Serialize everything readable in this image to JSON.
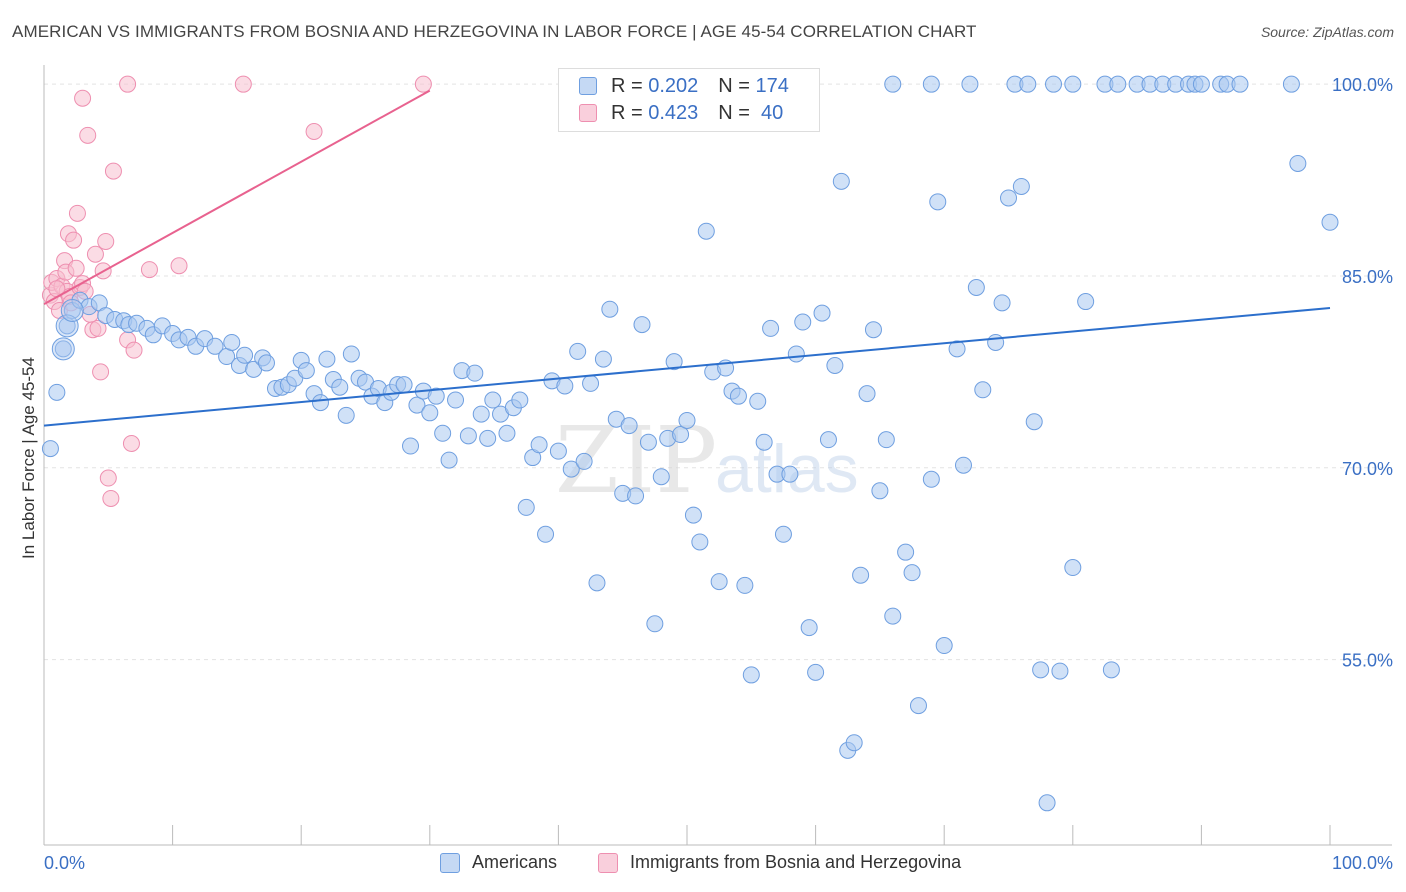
{
  "header": {
    "title": "AMERICAN VS IMMIGRANTS FROM BOSNIA AND HERZEGOVINA IN LABOR FORCE | AGE 45-54 CORRELATION CHART",
    "source": "Source: ZipAtlas.com"
  },
  "watermark": {
    "zip": "ZIP",
    "atlas": "atlas"
  },
  "legend": {
    "rows": [
      {
        "r_label": "R =",
        "r_value": "0.202",
        "n_label": "N =",
        "n_value": "174"
      },
      {
        "r_label": "R =",
        "r_value": "0.423",
        "n_label": "N =",
        "n_value": " 40"
      }
    ]
  },
  "colors": {
    "americans_fill": "#aac8f0",
    "americans_stroke": "#6f9fe0",
    "americans_line": "#2c6fcc",
    "bosnia_fill": "#f7bfd0",
    "bosnia_stroke": "#ee8fb0",
    "bosnia_line": "#e8628f",
    "tick_label": "#3a6fc4"
  },
  "chart_data": {
    "type": "scatter",
    "title": "AMERICAN VS IMMIGRANTS FROM BOSNIA AND HERZEGOVINA IN LABOR FORCE | AGE 45-54 CORRELATION CHART",
    "xlabel": "",
    "ylabel": "In Labor Force | Age 45-54",
    "xlim": [
      0,
      100
    ],
    "ylim": [
      40.5,
      101.5
    ],
    "x_tick_labels": [
      "0.0%",
      "100.0%"
    ],
    "y_ticks": [
      55,
      70,
      85,
      100
    ],
    "y_tick_labels": [
      "55.0%",
      "70.0%",
      "85.0%",
      "100.0%"
    ],
    "grid": true,
    "legend_position": "top-center",
    "series": [
      {
        "name": "Americans",
        "R": 0.202,
        "N": 174,
        "trend": [
          [
            0,
            73.3
          ],
          [
            100,
            82.5
          ]
        ],
        "points": [
          [
            0.5,
            71.5
          ],
          [
            1.0,
            75.9
          ],
          [
            1.5,
            79.3
          ],
          [
            1.8,
            81.1
          ],
          [
            2.2,
            82.3
          ],
          [
            2.8,
            83.1
          ],
          [
            3.5,
            82.6
          ],
          [
            4.3,
            82.9
          ],
          [
            4.8,
            81.9
          ],
          [
            5.5,
            81.6
          ],
          [
            6.2,
            81.5
          ],
          [
            6.6,
            81.2
          ],
          [
            7.2,
            81.3
          ],
          [
            8.0,
            80.9
          ],
          [
            8.5,
            80.4
          ],
          [
            9.2,
            81.1
          ],
          [
            10.0,
            80.5
          ],
          [
            10.5,
            80.0
          ],
          [
            11.2,
            80.2
          ],
          [
            11.8,
            79.5
          ],
          [
            12.5,
            80.1
          ],
          [
            13.3,
            79.5
          ],
          [
            14.2,
            78.7
          ],
          [
            14.6,
            79.8
          ],
          [
            15.2,
            78.0
          ],
          [
            15.6,
            78.8
          ],
          [
            16.3,
            77.7
          ],
          [
            17.0,
            78.6
          ],
          [
            17.3,
            78.2
          ],
          [
            18.0,
            76.2
          ],
          [
            18.5,
            76.3
          ],
          [
            19.0,
            76.5
          ],
          [
            19.5,
            77.0
          ],
          [
            20.0,
            78.4
          ],
          [
            20.4,
            77.6
          ],
          [
            21.0,
            75.8
          ],
          [
            21.5,
            75.1
          ],
          [
            22.0,
            78.5
          ],
          [
            22.5,
            76.9
          ],
          [
            23.0,
            76.3
          ],
          [
            23.5,
            74.1
          ],
          [
            23.9,
            78.9
          ],
          [
            24.5,
            77.0
          ],
          [
            25.0,
            76.7
          ],
          [
            25.5,
            75.6
          ],
          [
            26.0,
            76.2
          ],
          [
            26.5,
            75.1
          ],
          [
            27.0,
            75.9
          ],
          [
            27.5,
            76.5
          ],
          [
            28.0,
            76.5
          ],
          [
            28.5,
            71.7
          ],
          [
            29.0,
            74.9
          ],
          [
            29.5,
            76.0
          ],
          [
            30.0,
            74.3
          ],
          [
            30.5,
            75.6
          ],
          [
            31.0,
            72.7
          ],
          [
            31.5,
            70.6
          ],
          [
            32.0,
            75.3
          ],
          [
            32.5,
            77.6
          ],
          [
            33.0,
            72.5
          ],
          [
            33.5,
            77.4
          ],
          [
            34.0,
            74.2
          ],
          [
            34.5,
            72.3
          ],
          [
            34.9,
            75.3
          ],
          [
            35.5,
            74.2
          ],
          [
            36.0,
            72.7
          ],
          [
            36.5,
            74.7
          ],
          [
            37.0,
            75.3
          ],
          [
            37.5,
            66.9
          ],
          [
            38.0,
            70.8
          ],
          [
            38.5,
            71.8
          ],
          [
            39.0,
            64.8
          ],
          [
            39.5,
            76.8
          ],
          [
            40.0,
            71.3
          ],
          [
            40.5,
            76.4
          ],
          [
            41.0,
            69.9
          ],
          [
            41.5,
            79.1
          ],
          [
            42.0,
            70.5
          ],
          [
            42.5,
            76.6
          ],
          [
            43.0,
            61.0
          ],
          [
            43.5,
            78.5
          ],
          [
            44.0,
            82.4
          ],
          [
            44.5,
            73.8
          ],
          [
            45.0,
            68.0
          ],
          [
            45.5,
            73.3
          ],
          [
            46.0,
            67.8
          ],
          [
            46.5,
            81.2
          ],
          [
            47.0,
            72.0
          ],
          [
            47.5,
            57.8
          ],
          [
            48.0,
            69.3
          ],
          [
            48.5,
            72.3
          ],
          [
            49.0,
            78.3
          ],
          [
            49.5,
            72.6
          ],
          [
            50.0,
            73.7
          ],
          [
            50.5,
            66.3
          ],
          [
            51.0,
            64.2
          ],
          [
            51.5,
            88.5
          ],
          [
            52.0,
            77.5
          ],
          [
            52.5,
            61.1
          ],
          [
            53.0,
            77.8
          ],
          [
            53.5,
            76.0
          ],
          [
            54.0,
            75.6
          ],
          [
            54.5,
            60.8
          ],
          [
            55.0,
            53.8
          ],
          [
            55.5,
            75.2
          ],
          [
            56.0,
            72.0
          ],
          [
            56.5,
            80.9
          ],
          [
            57.0,
            69.5
          ],
          [
            57.5,
            64.8
          ],
          [
            58.0,
            69.5
          ],
          [
            58.5,
            78.9
          ],
          [
            59.0,
            81.4
          ],
          [
            59.5,
            57.5
          ],
          [
            60.0,
            54.0
          ],
          [
            60.5,
            82.1
          ],
          [
            61.0,
            72.2
          ],
          [
            61.5,
            78.0
          ],
          [
            62.0,
            92.4
          ],
          [
            62.5,
            47.9
          ],
          [
            63.0,
            48.5
          ],
          [
            63.5,
            61.6
          ],
          [
            64.0,
            75.8
          ],
          [
            64.5,
            80.8
          ],
          [
            65.0,
            68.2
          ],
          [
            65.5,
            72.2
          ],
          [
            66.0,
            58.4
          ],
          [
            67.0,
            63.4
          ],
          [
            67.5,
            61.8
          ],
          [
            68.0,
            51.4
          ],
          [
            69.0,
            69.1
          ],
          [
            69.5,
            90.8
          ],
          [
            70.0,
            56.1
          ],
          [
            71.0,
            79.3
          ],
          [
            71.5,
            70.2
          ],
          [
            72.5,
            84.1
          ],
          [
            73.0,
            76.1
          ],
          [
            74.0,
            79.8
          ],
          [
            74.5,
            82.9
          ],
          [
            75.0,
            91.1
          ],
          [
            76.0,
            92.0
          ],
          [
            77.0,
            73.6
          ],
          [
            77.5,
            54.2
          ],
          [
            78.0,
            43.8
          ],
          [
            79.0,
            54.1
          ],
          [
            80.0,
            62.2
          ],
          [
            81.0,
            83.0
          ],
          [
            83.0,
            54.2
          ],
          [
            66.0,
            100.0
          ],
          [
            69.0,
            100.0
          ],
          [
            72.0,
            100.0
          ],
          [
            75.5,
            100.0
          ],
          [
            76.5,
            100.0
          ],
          [
            78.5,
            100.0
          ],
          [
            80.0,
            100.0
          ],
          [
            82.5,
            100.0
          ],
          [
            83.5,
            100.0
          ],
          [
            85.0,
            100.0
          ],
          [
            86.0,
            100.0
          ],
          [
            87.0,
            100.0
          ],
          [
            88.0,
            100.0
          ],
          [
            89.0,
            100.0
          ],
          [
            89.5,
            100.0
          ],
          [
            90.0,
            100.0
          ],
          [
            91.5,
            100.0
          ],
          [
            92.0,
            100.0
          ],
          [
            93.0,
            100.0
          ],
          [
            97.0,
            100.0
          ],
          [
            97.5,
            93.8
          ],
          [
            100.0,
            89.2
          ]
        ]
      },
      {
        "name": "Immigrants from Bosnia and Herzegovina",
        "R": 0.423,
        "N": 40,
        "trend": [
          [
            0,
            82.8
          ],
          [
            30,
            99.5
          ]
        ],
        "points": [
          [
            0.5,
            83.5
          ],
          [
            0.6,
            84.5
          ],
          [
            0.8,
            83.0
          ],
          [
            1.0,
            84.8
          ],
          [
            1.2,
            82.3
          ],
          [
            1.4,
            84.2
          ],
          [
            1.6,
            86.2
          ],
          [
            1.7,
            85.3
          ],
          [
            1.8,
            83.8
          ],
          [
            1.9,
            88.3
          ],
          [
            2.0,
            83.4
          ],
          [
            2.1,
            82.9
          ],
          [
            2.3,
            87.8
          ],
          [
            2.5,
            85.6
          ],
          [
            2.6,
            89.9
          ],
          [
            2.8,
            84.1
          ],
          [
            3.0,
            84.4
          ],
          [
            3.2,
            83.8
          ],
          [
            3.4,
            96.0
          ],
          [
            3.6,
            82.0
          ],
          [
            3.8,
            80.8
          ],
          [
            4.0,
            86.7
          ],
          [
            4.2,
            80.9
          ],
          [
            4.4,
            77.5
          ],
          [
            4.6,
            85.4
          ],
          [
            4.8,
            87.7
          ],
          [
            5.0,
            69.2
          ],
          [
            5.2,
            67.6
          ],
          [
            5.4,
            93.2
          ],
          [
            6.5,
            80.0
          ],
          [
            6.8,
            71.9
          ],
          [
            7.0,
            79.2
          ],
          [
            8.2,
            85.5
          ],
          [
            10.5,
            85.8
          ],
          [
            3.0,
            98.9
          ],
          [
            6.5,
            100.0
          ],
          [
            15.5,
            100.0
          ],
          [
            21.0,
            96.3
          ],
          [
            29.5,
            100.0
          ],
          [
            1.0,
            84.0
          ]
        ]
      }
    ]
  }
}
